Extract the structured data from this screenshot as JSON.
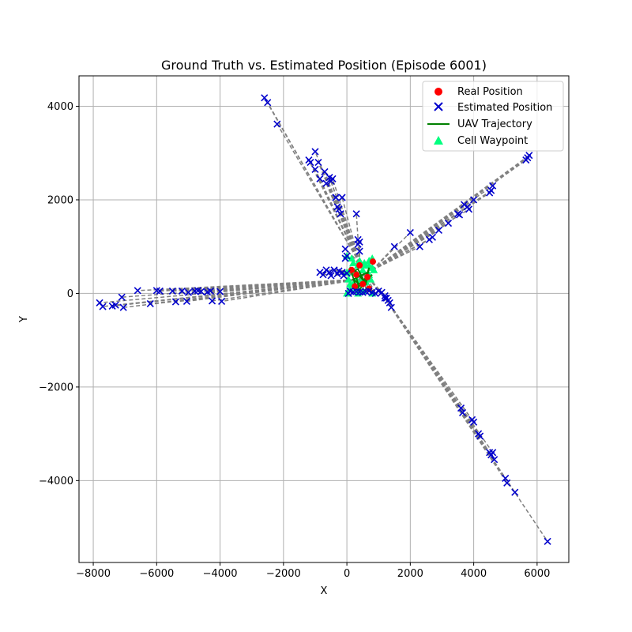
{
  "chart_data": {
    "type": "scatter",
    "title": "Ground Truth vs. Estimated Position (Episode 6001)",
    "xlabel": "X",
    "ylabel": "Y",
    "xlim": [
      -8450,
      7000
    ],
    "ylim": [
      -5750,
      4650
    ],
    "xticks": [
      -8000,
      -6000,
      -4000,
      -2000,
      0,
      2000,
      4000,
      6000
    ],
    "yticks": [
      -4000,
      -2000,
      0,
      2000,
      4000
    ],
    "xtick_labels": [
      "−8000",
      "−6000",
      "−4000",
      "−2000",
      "0",
      "2000",
      "4000",
      "6000"
    ],
    "ytick_labels": [
      "−4000",
      "−2000",
      "0",
      "2000",
      "4000"
    ],
    "grid": true,
    "legend_position": "top-right",
    "legend": {
      "real": "Real Position",
      "estimated": "Estimated Position",
      "trajectory": "UAV Trajectory",
      "waypoint": "Cell Waypoint"
    },
    "colors": {
      "real": "#ff0000",
      "estimated": "#0000cc",
      "trajectory": "#008000",
      "waypoint": "#00ff7f",
      "error_line": "#808080",
      "grid": "#b0b0b0"
    },
    "real_positions": [
      [
        820,
        680
      ],
      [
        300,
        400
      ],
      [
        500,
        200
      ],
      [
        650,
        350
      ],
      [
        250,
        150
      ],
      [
        700,
        100
      ],
      [
        400,
        600
      ],
      [
        150,
        500
      ]
    ],
    "uav_trajectory": [
      [
        150,
        450
      ],
      [
        350,
        520
      ],
      [
        600,
        200
      ],
      [
        700,
        550
      ],
      [
        500,
        150
      ],
      [
        200,
        300
      ],
      [
        650,
        450
      ],
      [
        400,
        50
      ],
      [
        250,
        500
      ],
      [
        550,
        250
      ],
      [
        800,
        400
      ],
      [
        300,
        100
      ],
      [
        150,
        450
      ]
    ],
    "cell_waypoints": [
      [
        0,
        0
      ],
      [
        100,
        100
      ],
      [
        200,
        200
      ],
      [
        300,
        300
      ],
      [
        400,
        400
      ],
      [
        500,
        500
      ],
      [
        600,
        600
      ],
      [
        700,
        700
      ],
      [
        800,
        0
      ],
      [
        0,
        800
      ],
      [
        100,
        500
      ],
      [
        200,
        650
      ],
      [
        300,
        100
      ],
      [
        400,
        700
      ],
      [
        500,
        50
      ],
      [
        600,
        250
      ],
      [
        700,
        400
      ],
      [
        800,
        550
      ],
      [
        50,
        300
      ],
      [
        150,
        750
      ],
      [
        250,
        450
      ],
      [
        350,
        600
      ],
      [
        450,
        250
      ],
      [
        550,
        650
      ],
      [
        650,
        100
      ],
      [
        750,
        300
      ],
      [
        850,
        500
      ],
      [
        0,
        450
      ],
      [
        800,
        750
      ],
      [
        350,
        0
      ],
      [
        100,
        200
      ],
      [
        700,
        600
      ]
    ],
    "rays": [
      {
        "origin": [
          800,
          500
        ],
        "points": [
          [
            1500,
            1000
          ],
          [
            2000,
            1300
          ],
          [
            2600,
            1150
          ],
          [
            2700,
            1200
          ],
          [
            2900,
            1350
          ],
          [
            3500,
            1700
          ],
          [
            3550,
            1680
          ],
          [
            3700,
            1900
          ],
          [
            3800,
            1850
          ],
          [
            3850,
            1800
          ],
          [
            4000,
            2000
          ],
          [
            4500,
            2150
          ],
          [
            4550,
            2200
          ],
          [
            4600,
            2300
          ],
          [
            5650,
            2850
          ],
          [
            5700,
            2900
          ],
          [
            5750,
            2950
          ],
          [
            3200,
            1500
          ],
          [
            2300,
            1000
          ]
        ]
      },
      {
        "origin": [
          1000,
          100
        ],
        "points": [
          [
            1200,
            -50
          ],
          [
            1300,
            -150
          ],
          [
            1350,
            -200
          ],
          [
            1400,
            -300
          ],
          [
            1250,
            -100
          ],
          [
            3600,
            -2450
          ],
          [
            3650,
            -2550
          ],
          [
            3950,
            -2700
          ],
          [
            4000,
            -2750
          ],
          [
            4150,
            -3000
          ],
          [
            4200,
            -3050
          ],
          [
            4500,
            -3400
          ],
          [
            4550,
            -3450
          ],
          [
            4600,
            -3400
          ],
          [
            4650,
            -3550
          ],
          [
            5000,
            -3950
          ],
          [
            5050,
            -4050
          ],
          [
            5300,
            -4250
          ],
          [
            6330,
            -5300
          ]
        ]
      },
      {
        "origin": [
          400,
          650
        ],
        "points": [
          [
            -2600,
            4180
          ],
          [
            -2500,
            4080
          ],
          [
            -2200,
            3620
          ],
          [
            -1200,
            2850
          ],
          [
            -1150,
            2800
          ],
          [
            -1000,
            3030
          ],
          [
            -1000,
            2650
          ],
          [
            -900,
            2800
          ],
          [
            -850,
            2450
          ],
          [
            -700,
            2600
          ],
          [
            -650,
            2350
          ],
          [
            -550,
            2480
          ],
          [
            -500,
            2400
          ],
          [
            -450,
            2450
          ],
          [
            -350,
            2050
          ],
          [
            -300,
            1850
          ],
          [
            -250,
            1800
          ],
          [
            -150,
            2050
          ],
          [
            -200,
            1700
          ],
          [
            300,
            1700
          ],
          [
            350,
            1150
          ],
          [
            350,
            1050
          ],
          [
            400,
            1100
          ],
          [
            400,
            900
          ],
          [
            -50,
            950
          ],
          [
            0,
            800
          ],
          [
            -50,
            750
          ]
        ]
      },
      {
        "origin": [
          400,
          300
        ],
        "points": [
          [
            -7800,
            -200
          ],
          [
            -7700,
            -280
          ],
          [
            -7400,
            -270
          ],
          [
            -7300,
            -250
          ],
          [
            -7100,
            -80
          ],
          [
            -7050,
            -300
          ],
          [
            -6600,
            60
          ],
          [
            -6200,
            -220
          ],
          [
            -6000,
            60
          ],
          [
            -5900,
            50
          ],
          [
            -5500,
            50
          ],
          [
            -5400,
            -180
          ],
          [
            -5200,
            50
          ],
          [
            -5050,
            -170
          ],
          [
            -5000,
            20
          ],
          [
            -4800,
            50
          ],
          [
            -4700,
            60
          ],
          [
            -4600,
            40
          ],
          [
            -4400,
            30
          ],
          [
            -4300,
            50
          ],
          [
            -4250,
            -160
          ],
          [
            -4000,
            40
          ],
          [
            -3950,
            -170
          ]
        ]
      },
      {
        "origin": [
          550,
          450
        ],
        "points": [
          [
            -850,
            450
          ],
          [
            -750,
            400
          ],
          [
            -650,
            500
          ],
          [
            -550,
            450
          ],
          [
            -500,
            380
          ],
          [
            -400,
            500
          ],
          [
            -300,
            420
          ],
          [
            -250,
            480
          ],
          [
            -150,
            450
          ],
          [
            -100,
            380
          ],
          [
            0,
            430
          ],
          [
            50,
            0
          ],
          [
            100,
            50
          ],
          [
            200,
            30
          ],
          [
            300,
            40
          ],
          [
            400,
            30
          ],
          [
            500,
            20
          ],
          [
            600,
            40
          ],
          [
            700,
            50
          ],
          [
            800,
            20
          ],
          [
            900,
            0
          ],
          [
            1000,
            50
          ],
          [
            1100,
            20
          ],
          [
            1200,
            -100
          ]
        ]
      }
    ]
  }
}
